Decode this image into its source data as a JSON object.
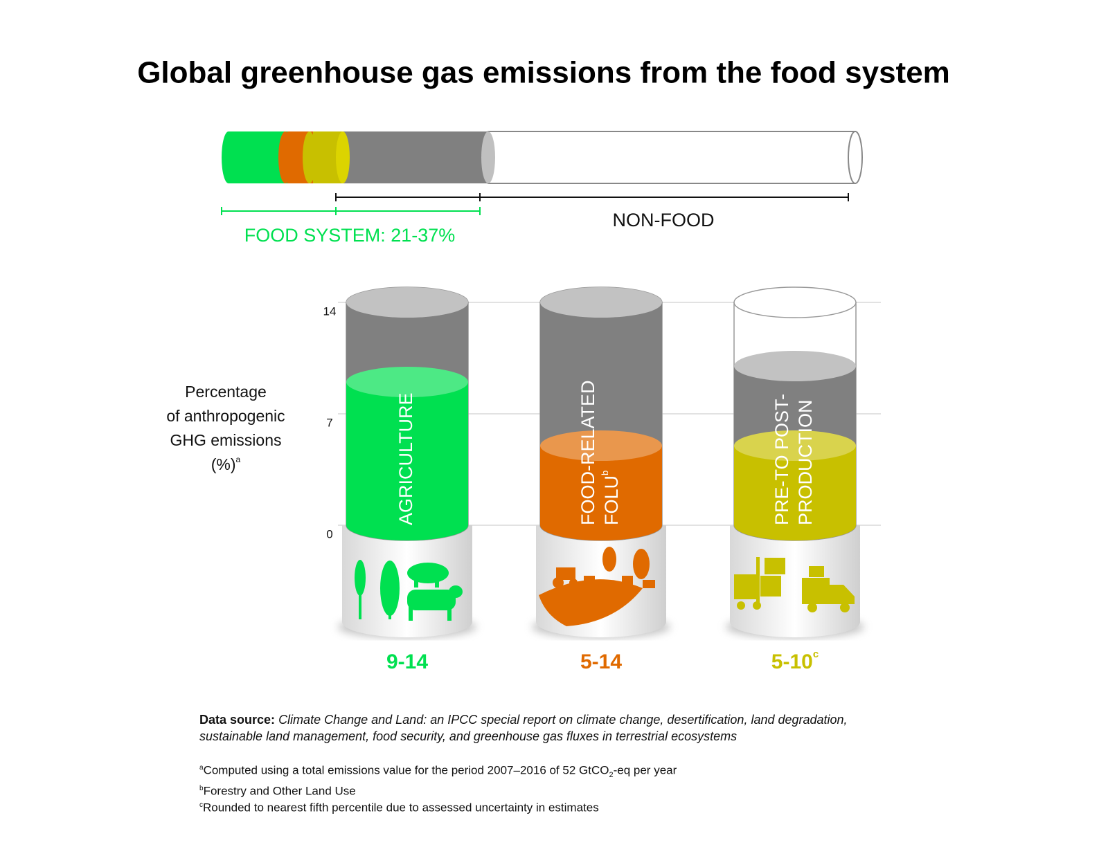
{
  "title": "Global greenhouse gas emissions from the food system",
  "summary_bar": {
    "food_label": "FOOD SYSTEM: 21-37%",
    "nonfood_label": "NON-FOOD"
  },
  "chart_data": {
    "type": "range-cylinder",
    "categories": [
      [
        "AGRICULTURE"
      ],
      [
        "FOOD-RELATED",
        "FOLU"
      ],
      [
        "PRE-TO POST-",
        "PRODUCTION"
      ]
    ],
    "category_notes": [
      null,
      "b",
      null
    ],
    "low": [
      9,
      5,
      5
    ],
    "high": [
      14,
      14,
      10
    ],
    "value_labels": [
      "9-14",
      "5-14",
      "5-10"
    ],
    "value_label_notes": [
      null,
      null,
      "c"
    ],
    "colors": [
      "#00e050",
      "#e06a00",
      "#c8c000"
    ],
    "high_color": "#808080",
    "ylim": [
      0,
      14
    ],
    "yticks": [
      0,
      7,
      14
    ],
    "grid": true,
    "y_label": [
      "Percentage",
      "of anthropogenic",
      "GHG emissions",
      "(%)"
    ],
    "y_label_note": "a"
  },
  "source": {
    "label": "Data source:",
    "text": "Climate Change and Land: an IPCC special report on climate change, desertification, land degradation, sustainable land management, food security, and greenhouse gas fluxes in terrestrial ecosystems"
  },
  "footnotes": [
    {
      "marker": "a",
      "text": "Computed using a total emissions value for the period 2007–2016 of 52 GtCO",
      "subscript": "2",
      "text_after": "-eq per year"
    },
    {
      "marker": "b",
      "text": "Forestry and Other Land Use"
    },
    {
      "marker": "c",
      "text": "Rounded to nearest fifth percentile due to assessed uncertainty in estimates"
    }
  ]
}
